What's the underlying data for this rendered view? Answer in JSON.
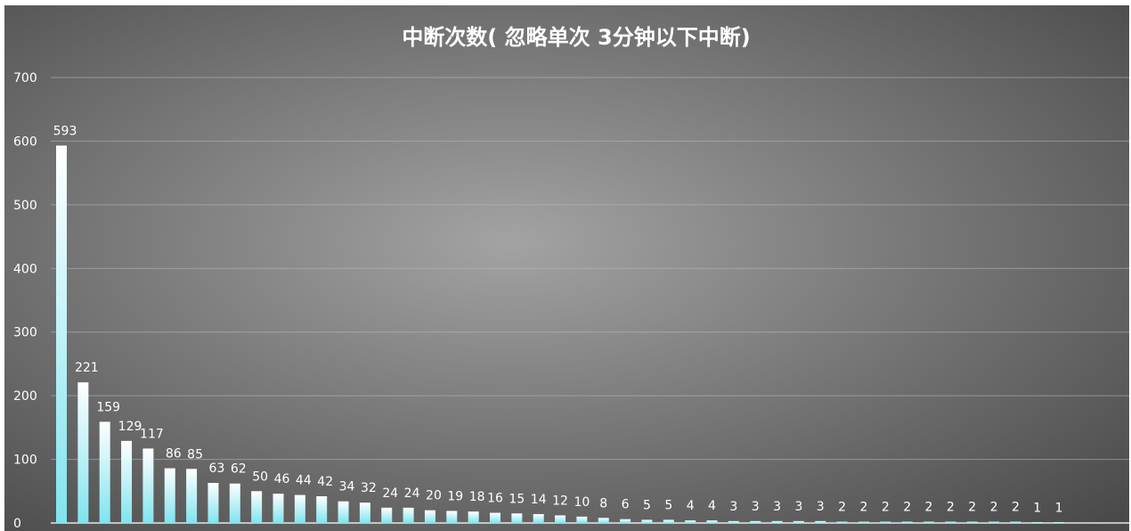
{
  "chart_data": {
    "type": "bar",
    "title": "中断次数( 忽略单次 3分钟以下中断)",
    "xlabel": "",
    "ylabel": "",
    "ylim": [
      0,
      700
    ],
    "yticks": [
      0,
      100,
      200,
      300,
      400,
      500,
      600,
      700
    ],
    "grid": true,
    "legend": "none",
    "values": [
      593,
      221,
      159,
      129,
      117,
      86,
      85,
      63,
      62,
      50,
      46,
      44,
      42,
      34,
      32,
      24,
      24,
      20,
      19,
      18,
      16,
      15,
      14,
      12,
      10,
      8,
      6,
      5,
      5,
      4,
      4,
      3,
      3,
      3,
      3,
      3,
      2,
      2,
      2,
      2,
      2,
      2,
      2,
      2,
      2,
      1,
      1
    ],
    "colors": {
      "background_center": "#a3a3a3",
      "background_edge": "#4a4a4a",
      "gridline": "#bdbdbd",
      "bar_top": "#ffffff",
      "bar_bottom": "#7fe4ee",
      "text": "#ffffff"
    }
  }
}
